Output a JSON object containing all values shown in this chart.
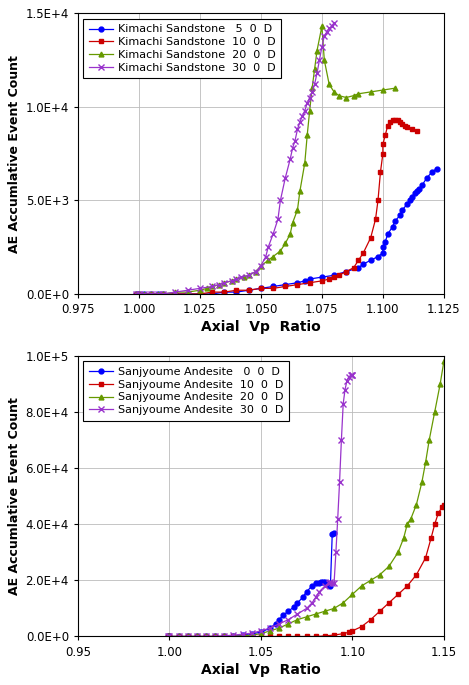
{
  "top_plot": {
    "xlabel": "Axial  Vp  Ratio",
    "ylabel": "AE Accumlative Event Count",
    "xlim": [
      0.975,
      1.125
    ],
    "ylim": [
      0,
      15000
    ],
    "yticks": [
      0,
      5000,
      10000,
      15000
    ],
    "ytick_labels": [
      "0.0E+0",
      "5.0E+3",
      "1.0E+4",
      "1.5E+4"
    ],
    "xticks": [
      0.975,
      1.0,
      1.025,
      1.05,
      1.075,
      1.1,
      1.125
    ],
    "xtick_labels": [
      "0.975",
      "1.000",
      "1.025",
      "1.050",
      "1.075",
      "1.100",
      "1.125"
    ],
    "series": [
      {
        "label": "Kimachi Sandstone   5  0  D",
        "color": "#0000FF",
        "marker": "o",
        "x": [
          0.999,
          1.0,
          1.002,
          1.005,
          1.008,
          1.01,
          1.015,
          1.02,
          1.025,
          1.03,
          1.035,
          1.04,
          1.045,
          1.05,
          1.055,
          1.06,
          1.065,
          1.068,
          1.07,
          1.075,
          1.08,
          1.085,
          1.09,
          1.092,
          1.095,
          1.098,
          1.1,
          1.1,
          1.101,
          1.102,
          1.104,
          1.105,
          1.107,
          1.108,
          1.11,
          1.111,
          1.112,
          1.113,
          1.114,
          1.115,
          1.116,
          1.118,
          1.12,
          1.122
        ],
        "y": [
          0,
          0,
          0,
          0,
          0,
          0,
          0,
          0,
          0,
          0,
          100,
          100,
          200,
          300,
          400,
          500,
          600,
          700,
          800,
          900,
          1000,
          1200,
          1400,
          1600,
          1800,
          2000,
          2200,
          2500,
          2800,
          3200,
          3600,
          3900,
          4200,
          4500,
          4800,
          5000,
          5200,
          5400,
          5500,
          5600,
          5800,
          6200,
          6500,
          6700
        ]
      },
      {
        "label": "Kimachi Sandstone  10  0  D",
        "color": "#CC0000",
        "marker": "s",
        "x": [
          0.999,
          1.0,
          1.005,
          1.01,
          1.015,
          1.02,
          1.025,
          1.03,
          1.035,
          1.04,
          1.045,
          1.05,
          1.055,
          1.06,
          1.065,
          1.07,
          1.075,
          1.078,
          1.08,
          1.082,
          1.085,
          1.088,
          1.09,
          1.092,
          1.095,
          1.097,
          1.098,
          1.099,
          1.1,
          1.1,
          1.101,
          1.102,
          1.103,
          1.104,
          1.105,
          1.106,
          1.107,
          1.108,
          1.109,
          1.11,
          1.112,
          1.114
        ],
        "y": [
          0,
          0,
          0,
          0,
          0,
          0,
          0,
          100,
          100,
          200,
          200,
          300,
          300,
          400,
          500,
          600,
          700,
          800,
          900,
          1000,
          1200,
          1400,
          1800,
          2200,
          3000,
          4000,
          5000,
          6500,
          7500,
          8000,
          8500,
          9000,
          9200,
          9300,
          9300,
          9300,
          9200,
          9100,
          9000,
          8900,
          8800,
          8700
        ]
      },
      {
        "label": "Kimachi Sandstone  20  0  D",
        "color": "#669900",
        "marker": "^",
        "x": [
          0.999,
          1.0,
          1.002,
          1.005,
          1.008,
          1.01,
          1.015,
          1.02,
          1.025,
          1.028,
          1.03,
          1.033,
          1.035,
          1.038,
          1.04,
          1.043,
          1.045,
          1.048,
          1.05,
          1.053,
          1.055,
          1.058,
          1.06,
          1.062,
          1.063,
          1.065,
          1.066,
          1.068,
          1.069,
          1.07,
          1.071,
          1.072,
          1.073,
          1.075,
          1.076,
          1.078,
          1.08,
          1.082,
          1.085,
          1.088,
          1.09,
          1.095,
          1.1,
          1.105
        ],
        "y": [
          0,
          0,
          0,
          0,
          0,
          0,
          100,
          100,
          200,
          300,
          400,
          500,
          600,
          700,
          800,
          900,
          1000,
          1200,
          1500,
          1800,
          2000,
          2300,
          2700,
          3200,
          3800,
          4500,
          5500,
          7000,
          8500,
          9800,
          11000,
          12000,
          13000,
          14300,
          12500,
          11200,
          10800,
          10600,
          10500,
          10600,
          10700,
          10800,
          10900,
          11000
        ]
      },
      {
        "label": "Kimachi Sandstone  30  0  D",
        "color": "#9933CC",
        "marker": "x",
        "x": [
          0.999,
          1.0,
          1.002,
          1.005,
          1.008,
          1.01,
          1.015,
          1.02,
          1.025,
          1.03,
          1.033,
          1.035,
          1.038,
          1.04,
          1.042,
          1.045,
          1.048,
          1.05,
          1.052,
          1.053,
          1.055,
          1.057,
          1.058,
          1.06,
          1.062,
          1.063,
          1.064,
          1.065,
          1.066,
          1.067,
          1.068,
          1.069,
          1.07,
          1.071,
          1.072,
          1.073,
          1.074,
          1.075,
          1.076,
          1.077,
          1.078,
          1.079,
          1.08
        ],
        "y": [
          0,
          0,
          0,
          0,
          0,
          0,
          100,
          200,
          300,
          400,
          500,
          600,
          700,
          800,
          900,
          1000,
          1200,
          1500,
          2000,
          2500,
          3200,
          4000,
          5000,
          6200,
          7200,
          7800,
          8200,
          8800,
          9200,
          9500,
          9800,
          10200,
          10500,
          10800,
          11200,
          11800,
          12500,
          13200,
          13800,
          14000,
          14200,
          14300,
          14500
        ]
      }
    ]
  },
  "bottom_plot": {
    "xlabel": "Axial  Vp  Ratio",
    "ylabel": "AE Accumlative Event Count",
    "xlim": [
      0.95,
      1.15
    ],
    "ylim": [
      0,
      100000
    ],
    "yticks": [
      0,
      20000,
      40000,
      60000,
      80000,
      100000
    ],
    "ytick_labels": [
      "0.0E+0",
      "2.0E+4",
      "4.0E+4",
      "6.0E+4",
      "8.0E+4",
      "1.0E+5"
    ],
    "xticks": [
      0.95,
      1.0,
      1.05,
      1.1,
      1.15
    ],
    "xtick_labels": [
      "0.95",
      "1.00",
      "1.05",
      "1.10",
      "1.15"
    ],
    "series": [
      {
        "label": "Sanjyoume Andesite   0  0  D",
        "color": "#0000FF",
        "marker": "o",
        "x": [
          0.999,
          1.0,
          1.005,
          1.01,
          1.015,
          1.02,
          1.025,
          1.03,
          1.035,
          1.04,
          1.045,
          1.05,
          1.055,
          1.058,
          1.06,
          1.062,
          1.065,
          1.068,
          1.07,
          1.073,
          1.075,
          1.078,
          1.08,
          1.082,
          1.083,
          1.084,
          1.085,
          1.086,
          1.087,
          1.088,
          1.089,
          1.09
        ],
        "y": [
          0,
          0,
          0,
          0,
          0,
          0,
          0,
          0,
          200,
          500,
          1000,
          1500,
          3000,
          4500,
          6000,
          7500,
          9000,
          10500,
          12000,
          14000,
          16000,
          18000,
          19000,
          19200,
          19400,
          19500,
          19300,
          19000,
          18500,
          18000,
          36500,
          37000
        ]
      },
      {
        "label": "Sanjyoume Andesite  10  0  D",
        "color": "#CC0000",
        "marker": "s",
        "x": [
          0.999,
          1.0,
          1.005,
          1.01,
          1.015,
          1.02,
          1.025,
          1.03,
          1.035,
          1.04,
          1.045,
          1.05,
          1.055,
          1.06,
          1.065,
          1.07,
          1.075,
          1.08,
          1.085,
          1.09,
          1.095,
          1.098,
          1.1,
          1.105,
          1.11,
          1.115,
          1.12,
          1.125,
          1.13,
          1.135,
          1.14,
          1.143,
          1.145,
          1.147,
          1.149,
          1.15
        ],
        "y": [
          0,
          0,
          0,
          0,
          0,
          0,
          0,
          0,
          0,
          0,
          0,
          0,
          0,
          0,
          0,
          0,
          0,
          0,
          200,
          500,
          1000,
          1500,
          2000,
          3500,
          6000,
          9000,
          12000,
          15000,
          18000,
          22000,
          28000,
          35000,
          40000,
          44000,
          46000,
          47000
        ]
      },
      {
        "label": "Sanjyoume Andesite  20  0  D",
        "color": "#669900",
        "marker": "^",
        "x": [
          0.999,
          1.0,
          1.005,
          1.01,
          1.015,
          1.02,
          1.025,
          1.03,
          1.035,
          1.04,
          1.045,
          1.05,
          1.055,
          1.06,
          1.065,
          1.07,
          1.075,
          1.08,
          1.085,
          1.09,
          1.095,
          1.1,
          1.105,
          1.11,
          1.115,
          1.12,
          1.125,
          1.128,
          1.13,
          1.132,
          1.135,
          1.138,
          1.14,
          1.142,
          1.145,
          1.148,
          1.15
        ],
        "y": [
          0,
          0,
          0,
          0,
          0,
          0,
          0,
          0,
          100,
          200,
          500,
          1000,
          2000,
          3000,
          4500,
          6000,
          7000,
          8000,
          9000,
          10000,
          12000,
          15000,
          18000,
          20000,
          22000,
          25000,
          30000,
          35000,
          40000,
          42000,
          47000,
          55000,
          62000,
          70000,
          80000,
          90000,
          98000
        ]
      },
      {
        "label": "Sanjyoume Andesite  30  0  D",
        "color": "#9933CC",
        "marker": "x",
        "x": [
          0.999,
          1.0,
          1.005,
          1.01,
          1.015,
          1.02,
          1.025,
          1.03,
          1.035,
          1.04,
          1.045,
          1.05,
          1.055,
          1.06,
          1.065,
          1.07,
          1.075,
          1.078,
          1.08,
          1.082,
          1.085,
          1.087,
          1.088,
          1.089,
          1.09,
          1.091,
          1.092,
          1.093,
          1.094,
          1.095,
          1.096,
          1.097,
          1.098,
          1.099,
          1.1,
          1.1
        ],
        "y": [
          0,
          0,
          0,
          0,
          0,
          0,
          0,
          200,
          500,
          800,
          1200,
          2000,
          3000,
          4500,
          6000,
          8000,
          10000,
          12000,
          14000,
          16000,
          18000,
          19000,
          19500,
          19200,
          19000,
          30000,
          42000,
          55000,
          70000,
          83000,
          88000,
          91000,
          92500,
          93000,
          93000,
          93000
        ]
      }
    ]
  },
  "bg_color": "#ffffff",
  "grid_color": "#bbbbbb",
  "legend_fontsize": 8,
  "axis_label_fontsize": 10,
  "tick_fontsize": 8.5
}
